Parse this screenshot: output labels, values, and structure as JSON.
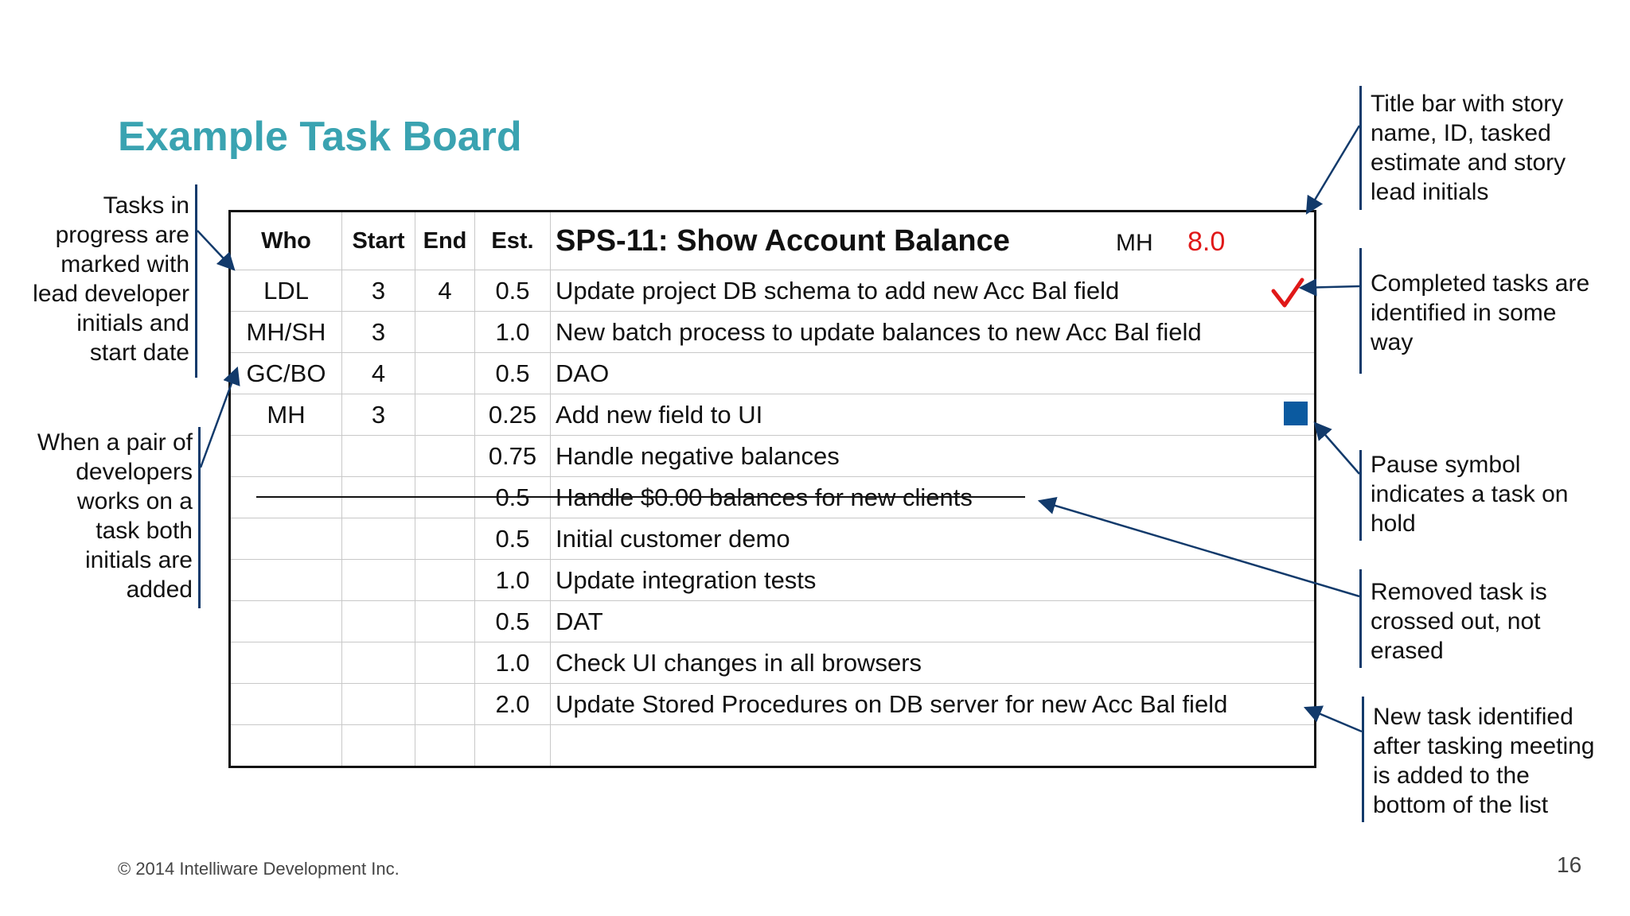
{
  "slide": {
    "title": "Example Task Board",
    "footer": "© 2014 Intelliware Development Inc.",
    "page_number": "16"
  },
  "board": {
    "headers": {
      "who": "Who",
      "start": "Start",
      "end": "End",
      "est": "Est."
    },
    "story": {
      "title": "SPS-11: Show Account Balance",
      "lead": "MH",
      "estimate": "8.0"
    },
    "rows": [
      {
        "who": "LDL",
        "start": "3",
        "end": "4",
        "est": "0.5",
        "task": "Update project DB schema to add new Acc Bal field",
        "status": "completed"
      },
      {
        "who": "MH/SH",
        "start": "3",
        "end": "",
        "est": "1.0",
        "task": "New batch process to update balances to new Acc Bal field",
        "status": "in-progress"
      },
      {
        "who": "GC/BO",
        "start": "4",
        "end": "",
        "est": "0.5",
        "task": "DAO",
        "status": "in-progress"
      },
      {
        "who": "MH",
        "start": "3",
        "end": "",
        "est": "0.25",
        "task": "Add new field to UI",
        "status": "on-hold"
      },
      {
        "who": "",
        "start": "",
        "end": "",
        "est": "0.75",
        "task": "Handle negative balances",
        "status": "todo"
      },
      {
        "who": "",
        "start": "",
        "end": "",
        "est": "0.5",
        "task": "Handle $0.00 balances for new clients",
        "status": "removed"
      },
      {
        "who": "",
        "start": "",
        "end": "",
        "est": "0.5",
        "task": "Initial customer demo",
        "status": "todo"
      },
      {
        "who": "",
        "start": "",
        "end": "",
        "est": "1.0",
        "task": "Update integration tests",
        "status": "todo"
      },
      {
        "who": "",
        "start": "",
        "end": "",
        "est": "0.5",
        "task": "DAT",
        "status": "todo"
      },
      {
        "who": "",
        "start": "",
        "end": "",
        "est": "1.0",
        "task": "Check UI changes in all browsers",
        "status": "todo"
      },
      {
        "who": "",
        "start": "",
        "end": "",
        "est": "2.0",
        "task": "Update Stored Procedures on DB server for new Acc Bal field",
        "status": "todo"
      },
      {
        "who": "",
        "start": "",
        "end": "",
        "est": "",
        "task": "",
        "status": "blank"
      }
    ]
  },
  "annotations": {
    "in_progress": [
      "Tasks in",
      "progress are",
      "marked with",
      "lead developer",
      "initials and",
      "start date"
    ],
    "pair": [
      "When a pair of",
      "developers",
      "works on a",
      "task both",
      "initials are",
      "added"
    ],
    "title_bar": [
      "Title bar with story",
      "name, ID, tasked",
      "estimate and story",
      "lead initials"
    ],
    "completed": [
      "Completed tasks are",
      "identified in some",
      "way"
    ],
    "pause": [
      "Pause symbol",
      "indicates a task on",
      "hold"
    ],
    "removed": [
      "Removed task is",
      "crossed out, not",
      "erased"
    ],
    "new_task": [
      "New task identified",
      "after tasking meeting",
      "is added to the",
      "bottom of the list"
    ]
  },
  "colors": {
    "title": "#3aa3b1",
    "estimate": "#e01818",
    "checkmark": "#e01818",
    "pause_square": "#0b5aa0",
    "arrows": "#123a6b"
  }
}
